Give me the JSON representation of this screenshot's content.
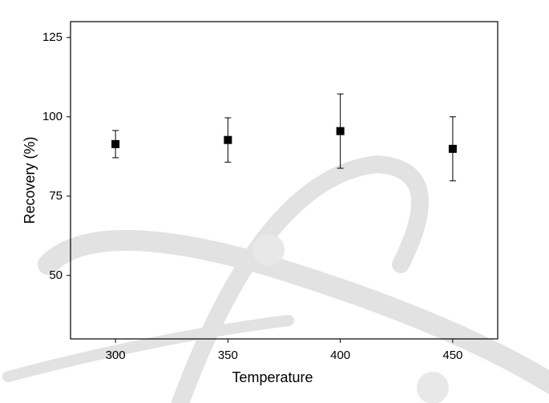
{
  "chart_data": {
    "type": "scatter",
    "x_label": "Temperature",
    "y_label": "Recovery (%)",
    "series": [
      {
        "color": "#000000",
        "x": [
          300,
          350,
          400,
          450
        ],
        "values": [
          91.4,
          92.7,
          95.5,
          89.9
        ],
        "errors": [
          4.3,
          7.0,
          11.7,
          10.1
        ]
      }
    ],
    "xlim": [
      280,
      470
    ],
    "xticks": [
      300,
      350,
      400,
      450
    ],
    "ylim": [
      30,
      130
    ],
    "yticks": [
      50,
      75,
      100,
      125
    ]
  }
}
